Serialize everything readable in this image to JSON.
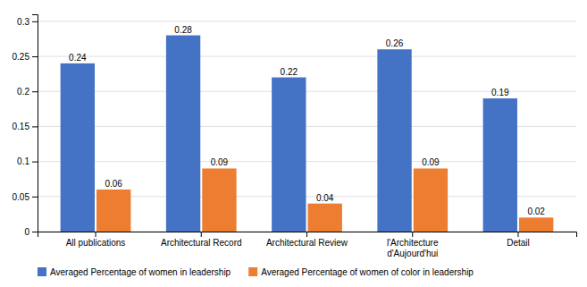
{
  "chart_data": {
    "type": "bar",
    "categories": [
      "All publications",
      "Architectural Record",
      "Architectural Review",
      "l'Architecture\nd'Aujourd'hui",
      "Detail"
    ],
    "series": [
      {
        "name": "Averaged Percentage of women in leadership",
        "color": "#4472C4",
        "values": [
          0.24,
          0.28,
          0.22,
          0.26,
          0.19
        ]
      },
      {
        "name": "Averaged Percentage of women of color in leadership",
        "color": "#ED7D31",
        "values": [
          0.06,
          0.09,
          0.04,
          0.09,
          0.02
        ]
      }
    ],
    "ylim": [
      0,
      0.31
    ],
    "yticks": [
      0,
      0.05,
      0.1,
      0.15,
      0.2,
      0.25,
      0.3
    ],
    "grid": true,
    "legend": "bottom",
    "data_labels": true
  }
}
